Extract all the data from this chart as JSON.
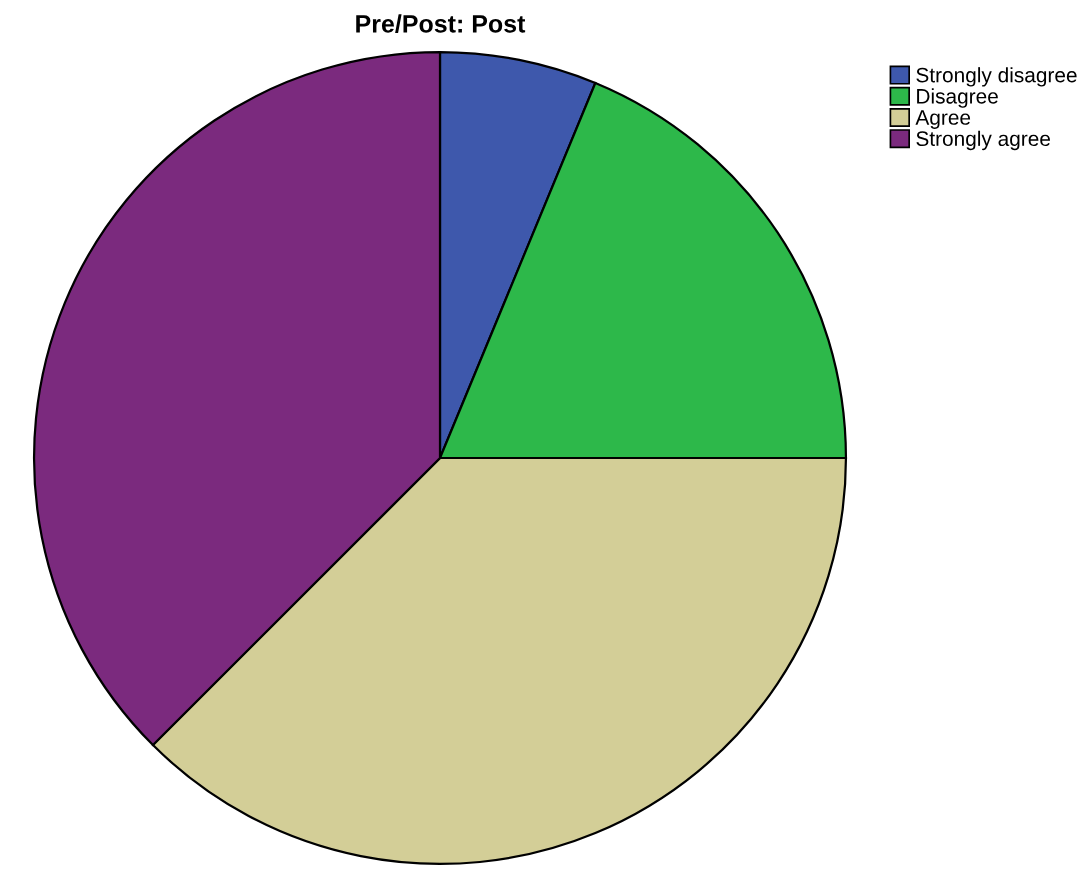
{
  "chart_data": {
    "type": "pie",
    "title": "Pre/Post: Post",
    "categories": [
      "Strongly disagree",
      "Disagree",
      "Agree",
      "Strongly agree"
    ],
    "values": [
      6.25,
      18.75,
      37.5,
      37.5
    ],
    "colors": [
      "#3e58ac",
      "#2db84a",
      "#d3ce97",
      "#7b2a7e"
    ],
    "legend": "top right"
  }
}
